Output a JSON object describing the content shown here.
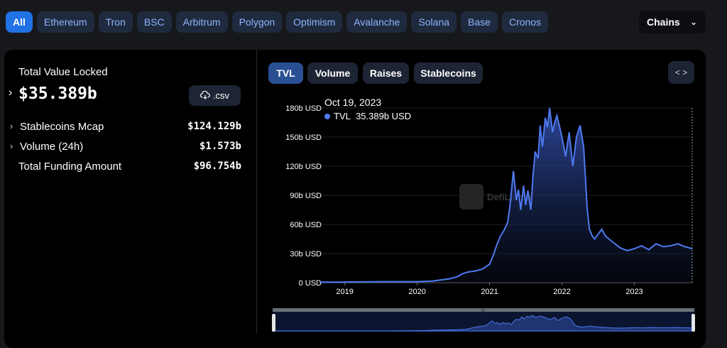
{
  "chains": {
    "items": [
      "All",
      "Ethereum",
      "Tron",
      "BSC",
      "Arbitrum",
      "Polygon",
      "Optimism",
      "Avalanche",
      "Solana",
      "Base",
      "Cronos"
    ],
    "active": "All",
    "dropdown_label": "Chains"
  },
  "summary": {
    "tvl_label": "Total Value Locked",
    "tvl_value": "$35.389b",
    "csv_label": ".csv",
    "stats": [
      {
        "label": "Stablecoins Mcap",
        "value": "$124.129b",
        "expandable": true
      },
      {
        "label": "Volume (24h)",
        "value": "$1.573b",
        "expandable": true
      },
      {
        "label": "Total Funding Amount",
        "value": "$96.754b",
        "expandable": false
      }
    ]
  },
  "chart_tabs": [
    "TVL",
    "Volume",
    "Raises",
    "Stablecoins"
  ],
  "active_tab": "TVL",
  "embed_icon": "code-icon",
  "tooltip": {
    "date": "Oct 19, 2023",
    "series": "TVL",
    "value": "35.389b USD"
  },
  "watermark": "DefiLlama",
  "colors": {
    "line": "#4f79f0",
    "active_chip": "#2172e5",
    "chip_text": "#8fb4ff"
  },
  "chart_data": {
    "type": "area",
    "title": "",
    "xlabel": "",
    "ylabel": "",
    "ylim": [
      0,
      180
    ],
    "xlim": [
      2018.65,
      2023.8
    ],
    "y_ticks": [
      "0 USD",
      "30b USD",
      "60b USD",
      "90b USD",
      "120b USD",
      "150b USD",
      "180b USD"
    ],
    "y_tick_values": [
      0,
      30,
      60,
      90,
      120,
      150,
      180
    ],
    "x_ticks": [
      "2019",
      "2020",
      "2021",
      "2022",
      "2023"
    ],
    "x_tick_values": [
      2019,
      2020,
      2021,
      2022,
      2023
    ],
    "series": [
      {
        "name": "TVL",
        "unit": "b USD",
        "x": [
          2018.65,
          2018.9,
          2019.2,
          2019.5,
          2019.8,
          2020.0,
          2020.2,
          2020.35,
          2020.45,
          2020.55,
          2020.62,
          2020.7,
          2020.8,
          2020.9,
          2021.0,
          2021.05,
          2021.1,
          2021.15,
          2021.2,
          2021.25,
          2021.28,
          2021.33,
          2021.37,
          2021.4,
          2021.43,
          2021.47,
          2021.5,
          2021.53,
          2021.57,
          2021.6,
          2021.63,
          2021.67,
          2021.7,
          2021.73,
          2021.77,
          2021.8,
          2021.83,
          2021.87,
          2021.9,
          2021.93,
          2021.97,
          2022.0,
          2022.05,
          2022.1,
          2022.15,
          2022.2,
          2022.25,
          2022.3,
          2022.35,
          2022.38,
          2022.42,
          2022.45,
          2022.5,
          2022.55,
          2022.6,
          2022.7,
          2022.8,
          2022.9,
          2023.0,
          2023.1,
          2023.2,
          2023.3,
          2023.4,
          2023.5,
          2023.6,
          2023.7,
          2023.8
        ],
        "values": [
          0.5,
          0.6,
          0.8,
          1,
          1,
          1,
          1.5,
          3,
          4,
          6,
          9,
          11,
          12,
          14,
          19,
          28,
          39,
          48,
          54,
          62,
          78,
          115,
          85,
          96,
          75,
          100,
          80,
          95,
          75,
          110,
          135,
          128,
          162,
          140,
          170,
          160,
          180,
          155,
          165,
          172,
          160,
          150,
          130,
          155,
          120,
          150,
          162,
          140,
          75,
          55,
          48,
          45,
          50,
          55,
          48,
          42,
          36,
          33,
          35,
          38,
          34,
          40,
          37,
          38,
          40,
          37,
          35
        ]
      }
    ]
  }
}
